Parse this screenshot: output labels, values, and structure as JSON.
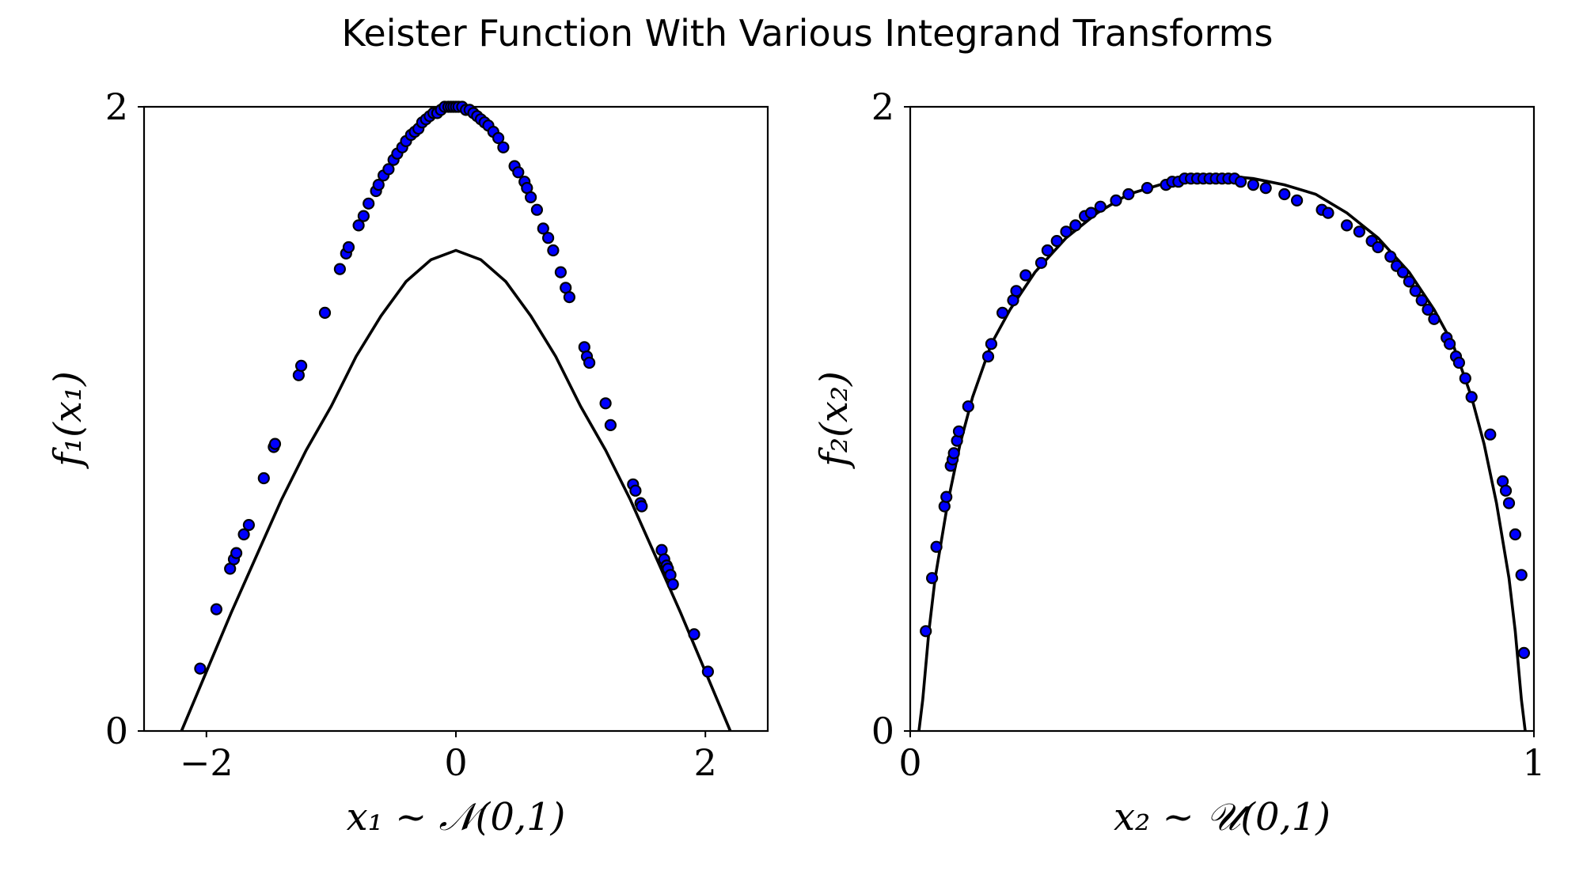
{
  "figure": {
    "title": "Keister Function With Various Integrand Transforms"
  },
  "chart_data": [
    {
      "type": "scatter",
      "overlay": "line",
      "xlabel": "x₁ ~ 𝒩(0,1)",
      "ylabel": "f₁(x₁)",
      "xlim": [
        -2.5,
        2.5
      ],
      "ylim": [
        0,
        2
      ],
      "xticks": [
        -2,
        0,
        2
      ],
      "xtick_labels": [
        "−2",
        "0",
        "2"
      ],
      "yticks": [
        0,
        2
      ],
      "ytick_labels": [
        "0",
        "2"
      ],
      "grid": false,
      "line": {
        "name": "",
        "color": "#000000",
        "x": [
          -2.2,
          -2.0,
          -1.8,
          -1.6,
          -1.4,
          -1.2,
          -1.0,
          -0.8,
          -0.6,
          -0.4,
          -0.2,
          0.0,
          0.2,
          0.4,
          0.6,
          0.8,
          1.0,
          1.2,
          1.4,
          1.6,
          1.8,
          2.0,
          2.2
        ],
        "y": [
          0.0,
          0.19,
          0.38,
          0.56,
          0.74,
          0.9,
          1.04,
          1.2,
          1.33,
          1.44,
          1.51,
          1.54,
          1.51,
          1.44,
          1.33,
          1.2,
          1.04,
          0.9,
          0.74,
          0.56,
          0.38,
          0.19,
          0.0
        ]
      },
      "series": [
        {
          "name": "",
          "color": "#0000ff",
          "x": [
            -2.05,
            -1.92,
            -1.81,
            -1.78,
            -1.76,
            -1.7,
            -1.66,
            -1.54,
            -1.46,
            -1.45,
            -1.26,
            -1.24,
            -1.05,
            -0.93,
            -0.88,
            -0.86,
            -0.78,
            -0.74,
            -0.7,
            -0.64,
            -0.62,
            -0.58,
            -0.54,
            -0.5,
            -0.47,
            -0.43,
            -0.4,
            -0.36,
            -0.33,
            -0.3,
            -0.27,
            -0.24,
            -0.21,
            -0.18,
            -0.15,
            -0.12,
            -0.09,
            -0.06,
            -0.04,
            -0.02,
            0.0,
            0.02,
            0.05,
            0.08,
            0.11,
            0.14,
            0.17,
            0.2,
            0.23,
            0.26,
            0.3,
            0.34,
            0.38,
            0.47,
            0.5,
            0.55,
            0.57,
            0.6,
            0.65,
            0.7,
            0.74,
            0.78,
            0.84,
            0.88,
            0.91,
            1.03,
            1.05,
            1.07,
            1.2,
            1.24,
            1.42,
            1.44,
            1.48,
            1.49,
            1.65,
            1.67,
            1.69,
            1.7,
            1.72,
            1.74,
            1.91,
            2.02
          ],
          "y": [
            0.2,
            0.39,
            0.52,
            0.55,
            0.57,
            0.63,
            0.66,
            0.81,
            0.91,
            0.92,
            1.14,
            1.17,
            1.34,
            1.48,
            1.53,
            1.55,
            1.62,
            1.65,
            1.69,
            1.73,
            1.75,
            1.78,
            1.8,
            1.83,
            1.85,
            1.87,
            1.89,
            1.91,
            1.92,
            1.93,
            1.95,
            1.96,
            1.97,
            1.98,
            1.98,
            1.99,
            2.0,
            2.0,
            2.0,
            2.0,
            2.0,
            2.0,
            2.0,
            1.99,
            1.99,
            1.98,
            1.97,
            1.96,
            1.95,
            1.94,
            1.92,
            1.9,
            1.87,
            1.81,
            1.79,
            1.76,
            1.74,
            1.71,
            1.67,
            1.61,
            1.58,
            1.54,
            1.47,
            1.42,
            1.39,
            1.23,
            1.2,
            1.18,
            1.05,
            0.98,
            0.79,
            0.77,
            0.73,
            0.72,
            0.58,
            0.55,
            0.53,
            0.52,
            0.5,
            0.47,
            0.31,
            0.19
          ]
        }
      ]
    },
    {
      "type": "scatter",
      "overlay": "line",
      "xlabel": "x₂ ~ 𝒰(0,1)",
      "ylabel": "f₂(x₂)",
      "xlim": [
        0,
        1
      ],
      "ylim": [
        0,
        2
      ],
      "xticks": [
        0,
        1
      ],
      "xtick_labels": [
        "0",
        "1"
      ],
      "yticks": [
        0,
        2
      ],
      "ytick_labels": [
        "0",
        "2"
      ],
      "grid": false,
      "line": {
        "name": "",
        "color": "#000000",
        "x": [
          0.014,
          0.02,
          0.03,
          0.04,
          0.06,
          0.08,
          0.1,
          0.13,
          0.16,
          0.2,
          0.25,
          0.3,
          0.35,
          0.4,
          0.45,
          0.5,
          0.55,
          0.6,
          0.65,
          0.7,
          0.75,
          0.8,
          0.84,
          0.87,
          0.9,
          0.92,
          0.94,
          0.96,
          0.97,
          0.98,
          0.986
        ],
        "y": [
          0.0,
          0.1,
          0.32,
          0.49,
          0.73,
          0.92,
          1.07,
          1.24,
          1.35,
          1.47,
          1.58,
          1.66,
          1.72,
          1.75,
          1.77,
          1.78,
          1.77,
          1.75,
          1.72,
          1.66,
          1.58,
          1.47,
          1.35,
          1.24,
          1.07,
          0.92,
          0.73,
          0.49,
          0.32,
          0.1,
          0.0
        ]
      },
      "series": [
        {
          "name": "",
          "color": "#0000ff",
          "x": [
            0.025,
            0.035,
            0.042,
            0.055,
            0.058,
            0.065,
            0.068,
            0.07,
            0.075,
            0.078,
            0.093,
            0.125,
            0.13,
            0.148,
            0.165,
            0.17,
            0.185,
            0.21,
            0.22,
            0.235,
            0.25,
            0.265,
            0.28,
            0.29,
            0.305,
            0.33,
            0.35,
            0.38,
            0.41,
            0.42,
            0.43,
            0.44,
            0.45,
            0.46,
            0.47,
            0.48,
            0.49,
            0.5,
            0.51,
            0.52,
            0.53,
            0.55,
            0.57,
            0.6,
            0.62,
            0.66,
            0.67,
            0.7,
            0.72,
            0.74,
            0.75,
            0.77,
            0.78,
            0.79,
            0.8,
            0.81,
            0.82,
            0.83,
            0.84,
            0.86,
            0.865,
            0.875,
            0.88,
            0.89,
            0.9,
            0.93,
            0.95,
            0.955,
            0.96,
            0.97,
            0.98,
            0.984
          ],
          "y": [
            0.32,
            0.49,
            0.59,
            0.72,
            0.75,
            0.85,
            0.87,
            0.89,
            0.93,
            0.96,
            1.04,
            1.2,
            1.24,
            1.34,
            1.38,
            1.41,
            1.46,
            1.5,
            1.54,
            1.57,
            1.6,
            1.62,
            1.65,
            1.66,
            1.68,
            1.7,
            1.72,
            1.74,
            1.75,
            1.76,
            1.76,
            1.77,
            1.77,
            1.77,
            1.77,
            1.77,
            1.77,
            1.77,
            1.77,
            1.77,
            1.76,
            1.75,
            1.74,
            1.72,
            1.7,
            1.67,
            1.66,
            1.62,
            1.6,
            1.57,
            1.55,
            1.52,
            1.49,
            1.47,
            1.44,
            1.41,
            1.38,
            1.35,
            1.32,
            1.26,
            1.24,
            1.2,
            1.18,
            1.13,
            1.07,
            0.95,
            0.8,
            0.77,
            0.73,
            0.63,
            0.5,
            0.25
          ]
        }
      ]
    }
  ]
}
